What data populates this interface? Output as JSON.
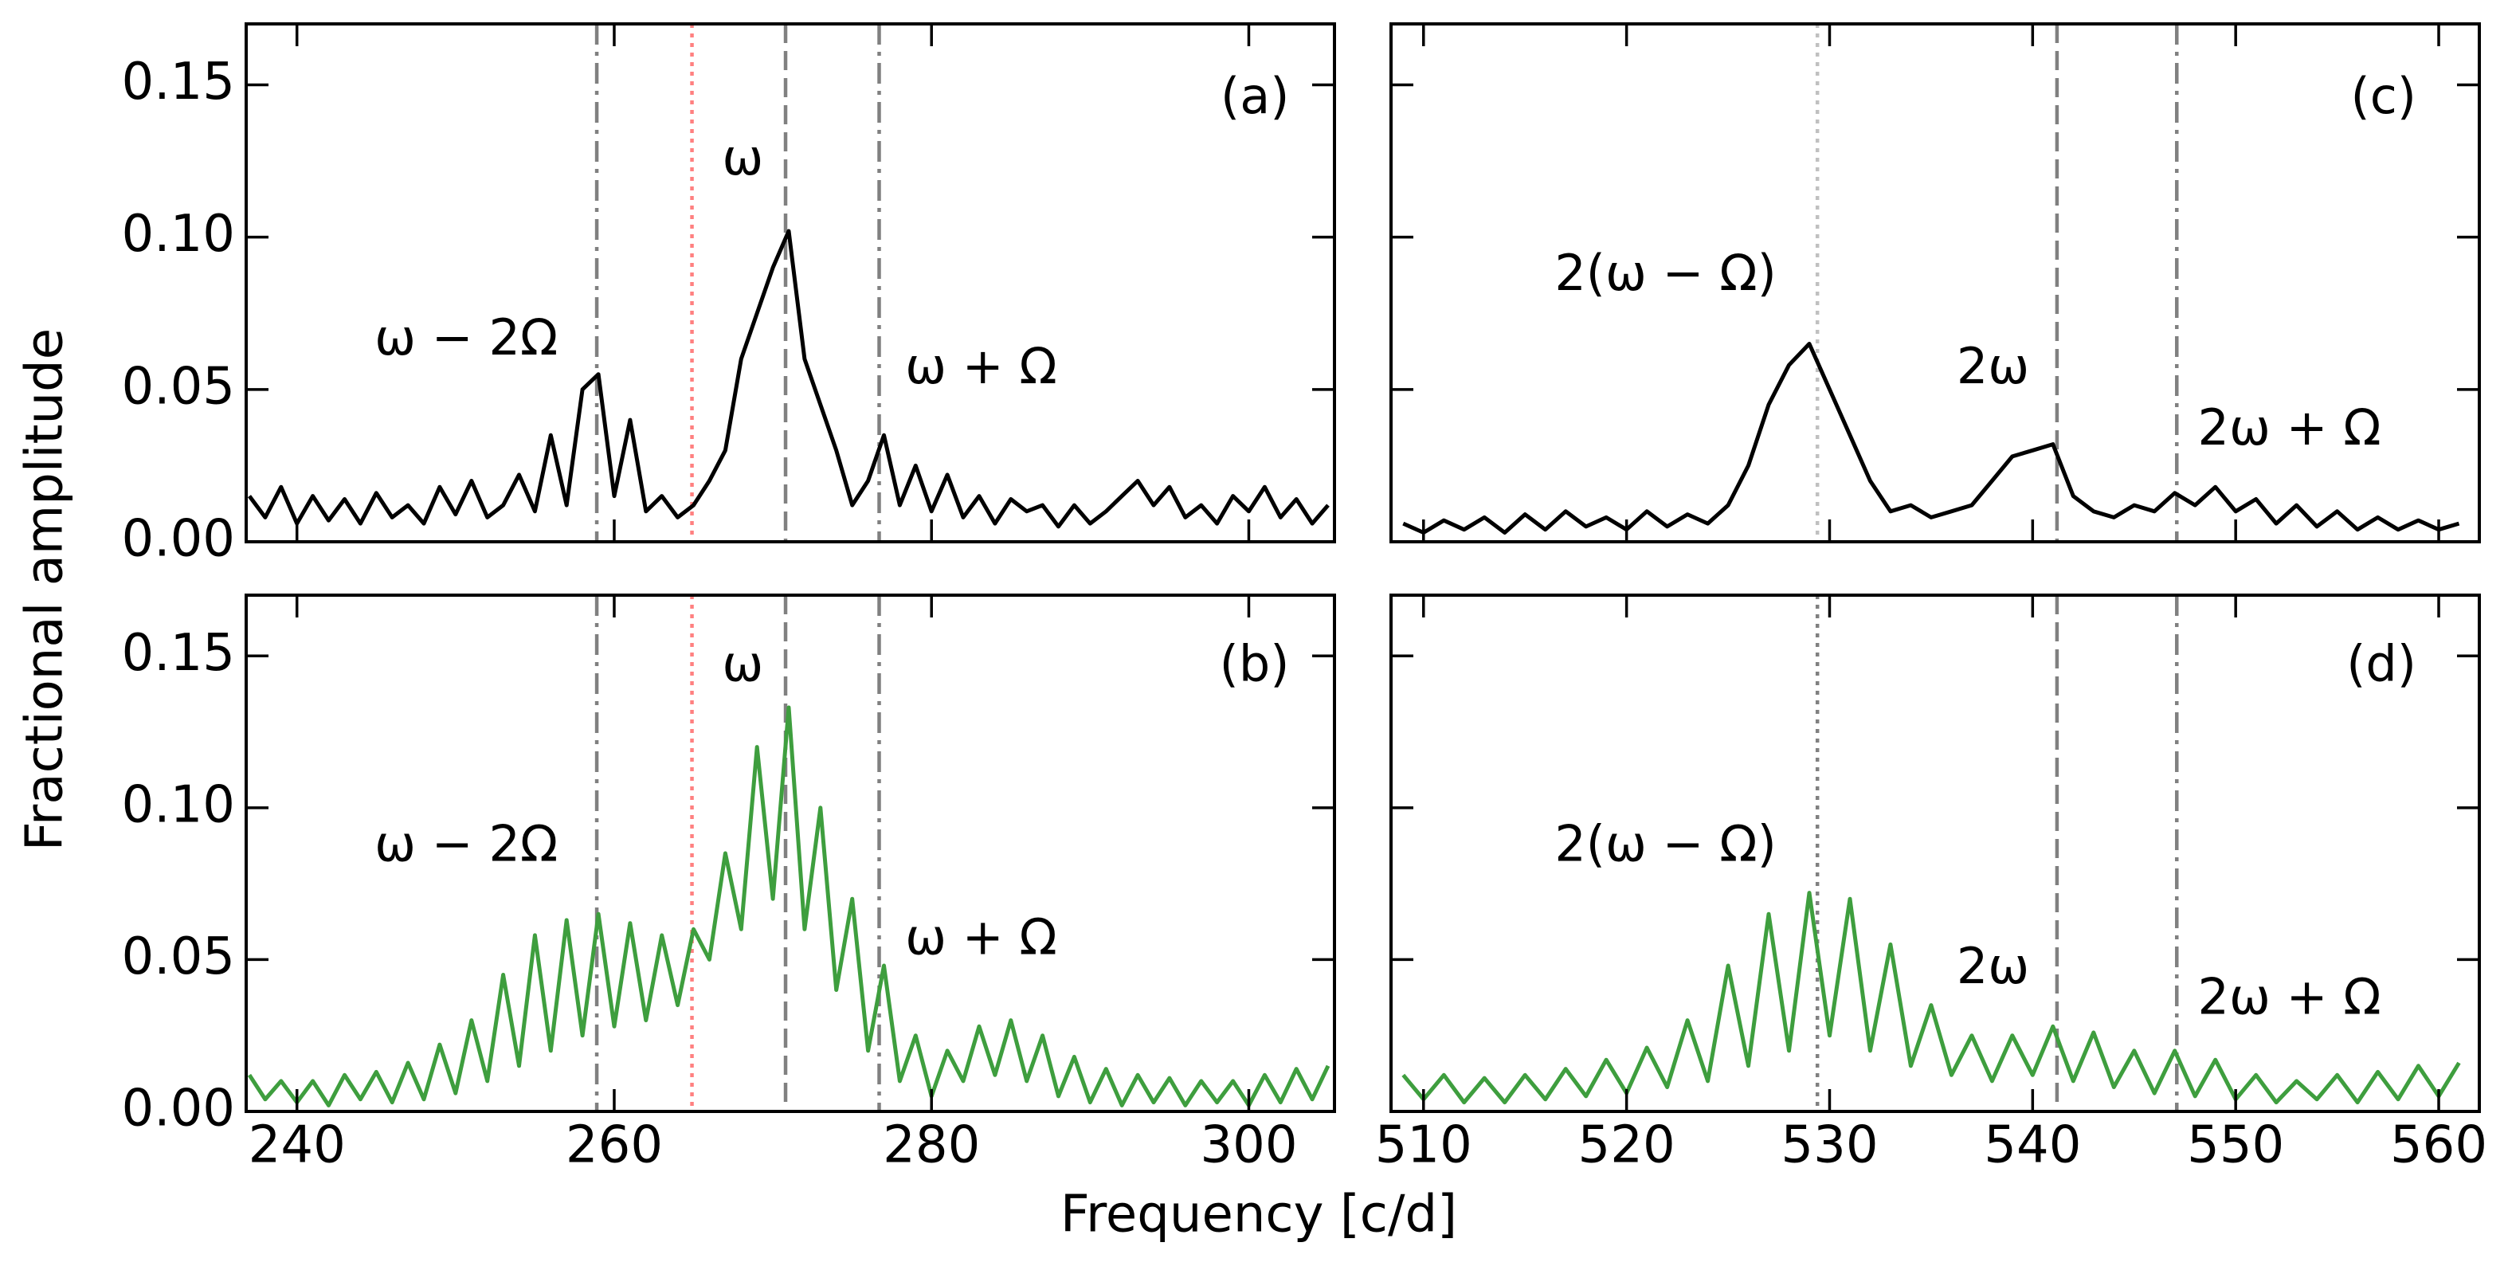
{
  "figure": {
    "xlabel": "Frequency [c/d]",
    "ylabel": "Fractional amplitude"
  },
  "chart_data": [
    {
      "type": "line",
      "panel_label": "(a)",
      "xlim": [
        236.8,
        305.4
      ],
      "xticks": [
        240,
        260,
        280,
        300
      ],
      "show_xticklabels": false,
      "ylim": [
        0,
        0.17
      ],
      "yticks": [
        {
          "value": 0,
          "label": "0.00"
        },
        {
          "value": 0.05,
          "label": "0.05"
        },
        {
          "value": 0.1,
          "label": "0.10"
        },
        {
          "value": 0.15,
          "label": "0.15"
        }
      ],
      "show_yticklabels": true,
      "x": [
        237,
        238,
        239,
        240,
        241,
        242,
        243,
        244,
        245,
        246,
        247,
        248,
        249,
        250,
        251,
        252,
        253,
        254,
        255,
        256,
        257,
        258,
        259,
        260,
        261,
        262,
        263,
        264,
        265,
        266,
        267,
        268,
        269,
        270,
        271,
        272,
        273,
        274,
        275,
        276,
        277,
        278,
        279,
        280,
        281,
        282,
        283,
        284,
        285,
        286,
        287,
        288,
        289,
        290,
        291,
        292,
        293,
        294,
        295,
        296,
        297,
        298,
        299,
        300,
        301,
        302,
        303,
        304,
        305
      ],
      "series": [
        {
          "color": "#000000",
          "values": [
            0.015,
            0.008,
            0.018,
            0.006,
            0.015,
            0.007,
            0.014,
            0.006,
            0.016,
            0.008,
            0.012,
            0.006,
            0.018,
            0.009,
            0.02,
            0.008,
            0.012,
            0.022,
            0.01,
            0.035,
            0.012,
            0.05,
            0.055,
            0.015,
            0.04,
            0.01,
            0.015,
            0.008,
            0.012,
            0.02,
            0.03,
            0.06,
            0.075,
            0.09,
            0.102,
            0.06,
            0.045,
            0.03,
            0.012,
            0.02,
            0.035,
            0.012,
            0.025,
            0.01,
            0.022,
            0.008,
            0.015,
            0.006,
            0.014,
            0.01,
            0.012,
            0.005,
            0.012,
            0.006,
            0.01,
            0.015,
            0.02,
            0.012,
            0.018,
            0.008,
            0.012,
            0.006,
            0.015,
            0.01,
            0.018,
            0.008,
            0.014,
            0.006,
            0.012
          ]
        }
      ],
      "markers": [
        {
          "x": 258.9,
          "style": "dashdot",
          "color": "#808080"
        },
        {
          "x": 264.9,
          "style": "dotted",
          "color": "#ff8080"
        },
        {
          "x": 270.8,
          "style": "dashed",
          "color": "#808080"
        },
        {
          "x": 276.7,
          "style": "dashdot",
          "color": "#808080"
        }
      ],
      "annotations": [
        "ω − 2Ω",
        "ω",
        "ω + Ω"
      ]
    },
    {
      "type": "line",
      "panel_label": "(b)",
      "xlim": [
        236.8,
        305.4
      ],
      "xticks": [
        240,
        260,
        280,
        300
      ],
      "show_xticklabels": true,
      "ylim": [
        0,
        0.17
      ],
      "yticks": [
        {
          "value": 0,
          "label": "0.00"
        },
        {
          "value": 0.05,
          "label": "0.05"
        },
        {
          "value": 0.1,
          "label": "0.10"
        },
        {
          "value": 0.15,
          "label": "0.15"
        }
      ],
      "show_yticklabels": true,
      "x": [
        237,
        238,
        239,
        240,
        241,
        242,
        243,
        244,
        245,
        246,
        247,
        248,
        249,
        250,
        251,
        252,
        253,
        254,
        255,
        256,
        257,
        258,
        259,
        260,
        261,
        262,
        263,
        264,
        265,
        266,
        267,
        268,
        269,
        270,
        271,
        272,
        273,
        274,
        275,
        276,
        277,
        278,
        279,
        280,
        281,
        282,
        283,
        284,
        285,
        286,
        287,
        288,
        289,
        290,
        291,
        292,
        293,
        294,
        295,
        296,
        297,
        298,
        299,
        300,
        301,
        302,
        303,
        304,
        305
      ],
      "series": [
        {
          "color": "#3e9e3e",
          "values": [
            0.012,
            0.004,
            0.01,
            0.003,
            0.01,
            0.002,
            0.012,
            0.004,
            0.013,
            0.003,
            0.016,
            0.004,
            0.022,
            0.006,
            0.03,
            0.01,
            0.045,
            0.015,
            0.058,
            0.02,
            0.063,
            0.025,
            0.065,
            0.028,
            0.062,
            0.03,
            0.058,
            0.035,
            0.06,
            0.05,
            0.085,
            0.06,
            0.12,
            0.07,
            0.133,
            0.06,
            0.1,
            0.04,
            0.07,
            0.02,
            0.048,
            0.01,
            0.025,
            0.005,
            0.02,
            0.01,
            0.028,
            0.012,
            0.03,
            0.01,
            0.025,
            0.005,
            0.018,
            0.003,
            0.014,
            0.002,
            0.012,
            0.003,
            0.011,
            0.002,
            0.01,
            0.003,
            0.01,
            0.002,
            0.012,
            0.003,
            0.014,
            0.004,
            0.015
          ]
        }
      ],
      "markers": [
        {
          "x": 258.9,
          "style": "dashdot",
          "color": "#808080"
        },
        {
          "x": 264.9,
          "style": "dotted",
          "color": "#ff8080"
        },
        {
          "x": 270.8,
          "style": "dashed",
          "color": "#808080"
        },
        {
          "x": 276.7,
          "style": "dashdot",
          "color": "#808080"
        }
      ],
      "annotations": [
        "ω − 2Ω",
        "ω",
        "ω + Ω"
      ]
    },
    {
      "type": "line",
      "panel_label": "(c)",
      "xlim": [
        508.4,
        562
      ],
      "xticks": [
        510,
        520,
        530,
        540,
        550,
        560
      ],
      "show_xticklabels": false,
      "ylim": [
        0,
        0.17
      ],
      "yticks": [
        0,
        0.05,
        0.1,
        0.15
      ],
      "show_yticklabels": false,
      "x": [
        509,
        510,
        511,
        512,
        513,
        514,
        515,
        516,
        517,
        518,
        519,
        520,
        521,
        522,
        523,
        524,
        525,
        526,
        527,
        528,
        529,
        530,
        531,
        532,
        533,
        534,
        535,
        536,
        537,
        538,
        539,
        540,
        541,
        542,
        543,
        544,
        545,
        546,
        547,
        548,
        549,
        550,
        551,
        552,
        553,
        554,
        555,
        556,
        557,
        558,
        559,
        560,
        561
      ],
      "series": [
        {
          "color": "#000000",
          "values": [
            0.006,
            0.003,
            0.007,
            0.004,
            0.008,
            0.003,
            0.009,
            0.004,
            0.01,
            0.005,
            0.008,
            0.004,
            0.01,
            0.005,
            0.009,
            0.006,
            0.012,
            0.025,
            0.045,
            0.058,
            0.065,
            0.05,
            0.035,
            0.02,
            0.01,
            0.012,
            0.008,
            0.01,
            0.012,
            0.02,
            0.028,
            0.03,
            0.032,
            0.015,
            0.01,
            0.008,
            0.012,
            0.01,
            0.016,
            0.012,
            0.018,
            0.01,
            0.014,
            0.006,
            0.012,
            0.005,
            0.01,
            0.004,
            0.008,
            0.004,
            0.007,
            0.004,
            0.006
          ]
        }
      ],
      "markers": [
        {
          "x": 529.4,
          "style": "dotted",
          "color": "#c0c0c0"
        },
        {
          "x": 541.2,
          "style": "dashed",
          "color": "#808080"
        },
        {
          "x": 547.1,
          "style": "dashdot",
          "color": "#808080"
        }
      ],
      "annotations": [
        "2(ω − Ω)",
        "2ω",
        "2ω + Ω"
      ]
    },
    {
      "type": "line",
      "panel_label": "(d)",
      "xlim": [
        508.4,
        562
      ],
      "xticks": [
        510,
        520,
        530,
        540,
        550,
        560
      ],
      "show_xticklabels": true,
      "ylim": [
        0,
        0.17
      ],
      "yticks": [
        0,
        0.05,
        0.1,
        0.15
      ],
      "show_yticklabels": false,
      "x": [
        509,
        510,
        511,
        512,
        513,
        514,
        515,
        516,
        517,
        518,
        519,
        520,
        521,
        522,
        523,
        524,
        525,
        526,
        527,
        528,
        529,
        530,
        531,
        532,
        533,
        534,
        535,
        536,
        537,
        538,
        539,
        540,
        541,
        542,
        543,
        544,
        545,
        546,
        547,
        548,
        549,
        550,
        551,
        552,
        553,
        554,
        555,
        556,
        557,
        558,
        559,
        560,
        561
      ],
      "series": [
        {
          "color": "#3e9e3e",
          "values": [
            0.012,
            0.004,
            0.012,
            0.003,
            0.011,
            0.003,
            0.012,
            0.004,
            0.014,
            0.005,
            0.017,
            0.006,
            0.021,
            0.008,
            0.03,
            0.01,
            0.048,
            0.015,
            0.065,
            0.02,
            0.072,
            0.025,
            0.07,
            0.02,
            0.055,
            0.015,
            0.035,
            0.012,
            0.025,
            0.01,
            0.025,
            0.012,
            0.028,
            0.01,
            0.026,
            0.008,
            0.02,
            0.006,
            0.02,
            0.005,
            0.017,
            0.004,
            0.012,
            0.003,
            0.01,
            0.004,
            0.012,
            0.003,
            0.013,
            0.004,
            0.015,
            0.005,
            0.016
          ]
        }
      ],
      "markers": [
        {
          "x": 529.4,
          "style": "dotted",
          "color": "#808080"
        },
        {
          "x": 541.2,
          "style": "dashed",
          "color": "#808080"
        },
        {
          "x": 547.1,
          "style": "dashdot",
          "color": "#808080"
        }
      ],
      "annotations": [
        "2(ω − Ω)",
        "2ω",
        "2ω + Ω"
      ]
    }
  ]
}
